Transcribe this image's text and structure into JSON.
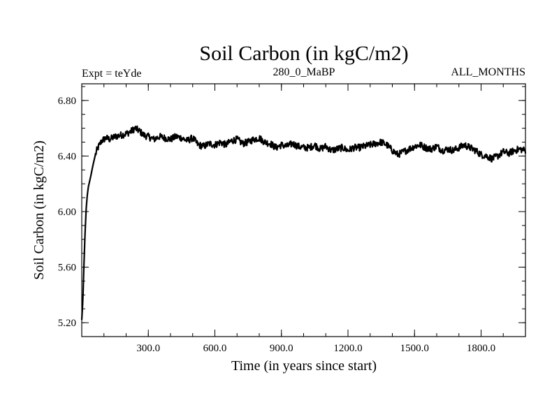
{
  "chart_data": {
    "type": "line",
    "title": "Soil Carbon (in kgC/m2)",
    "subtitle_left": "Expt = teYde",
    "subtitle_center": "280_0_MaBP",
    "subtitle_right": "ALL_MONTHS",
    "xlabel": "Time (in years since start)",
    "ylabel": "Soil Carbon (in kgC/m2)",
    "xlim": [
      0,
      2000
    ],
    "ylim": [
      5.1,
      6.92
    ],
    "x_ticks": [
      300,
      600,
      900,
      1200,
      1500,
      1800
    ],
    "x_tick_labels": [
      "300.0",
      "600.0",
      "900.0",
      "1200.0",
      "1500.0",
      "1800.0"
    ],
    "x_minor_step": 100,
    "y_ticks": [
      5.2,
      5.6,
      6.0,
      6.4,
      6.8
    ],
    "y_tick_labels": [
      "5.20",
      "5.60",
      "6.00",
      "6.40",
      "6.80"
    ],
    "y_minor_step": 0.1,
    "grid": false,
    "series": [
      {
        "name": "Soil Carbon",
        "color": "#000000",
        "x": [
          0,
          5,
          10,
          15,
          20,
          25,
          30,
          40,
          50,
          60,
          70,
          80,
          90,
          100,
          110,
          125,
          150,
          175,
          200,
          225,
          240,
          260,
          280,
          300,
          325,
          350,
          375,
          400,
          425,
          450,
          475,
          500,
          525,
          550,
          575,
          600,
          625,
          650,
          675,
          700,
          725,
          750,
          775,
          800,
          825,
          850,
          875,
          900,
          925,
          950,
          975,
          1000,
          1025,
          1050,
          1075,
          1100,
          1125,
          1150,
          1175,
          1200,
          1225,
          1250,
          1275,
          1300,
          1325,
          1350,
          1375,
          1400,
          1425,
          1450,
          1475,
          1500,
          1525,
          1550,
          1575,
          1600,
          1625,
          1650,
          1675,
          1700,
          1725,
          1750,
          1775,
          1800,
          1825,
          1850,
          1875,
          1900,
          1925,
          1950,
          1975,
          2000
        ],
        "values": [
          5.22,
          5.36,
          5.62,
          5.85,
          6.02,
          6.12,
          6.18,
          6.25,
          6.33,
          6.4,
          6.45,
          6.48,
          6.51,
          6.52,
          6.53,
          6.52,
          6.54,
          6.55,
          6.56,
          6.58,
          6.6,
          6.58,
          6.55,
          6.54,
          6.52,
          6.54,
          6.53,
          6.52,
          6.54,
          6.53,
          6.51,
          6.53,
          6.48,
          6.47,
          6.49,
          6.48,
          6.5,
          6.48,
          6.51,
          6.52,
          6.49,
          6.5,
          6.52,
          6.53,
          6.5,
          6.49,
          6.46,
          6.48,
          6.47,
          6.49,
          6.47,
          6.46,
          6.46,
          6.48,
          6.45,
          6.47,
          6.44,
          6.45,
          6.46,
          6.44,
          6.46,
          6.46,
          6.47,
          6.48,
          6.49,
          6.5,
          6.48,
          6.44,
          6.41,
          6.43,
          6.45,
          6.47,
          6.48,
          6.46,
          6.45,
          6.47,
          6.44,
          6.45,
          6.44,
          6.46,
          6.48,
          6.46,
          6.44,
          6.41,
          6.4,
          6.38,
          6.4,
          6.43,
          6.42,
          6.44,
          6.45,
          6.44
        ]
      }
    ]
  }
}
